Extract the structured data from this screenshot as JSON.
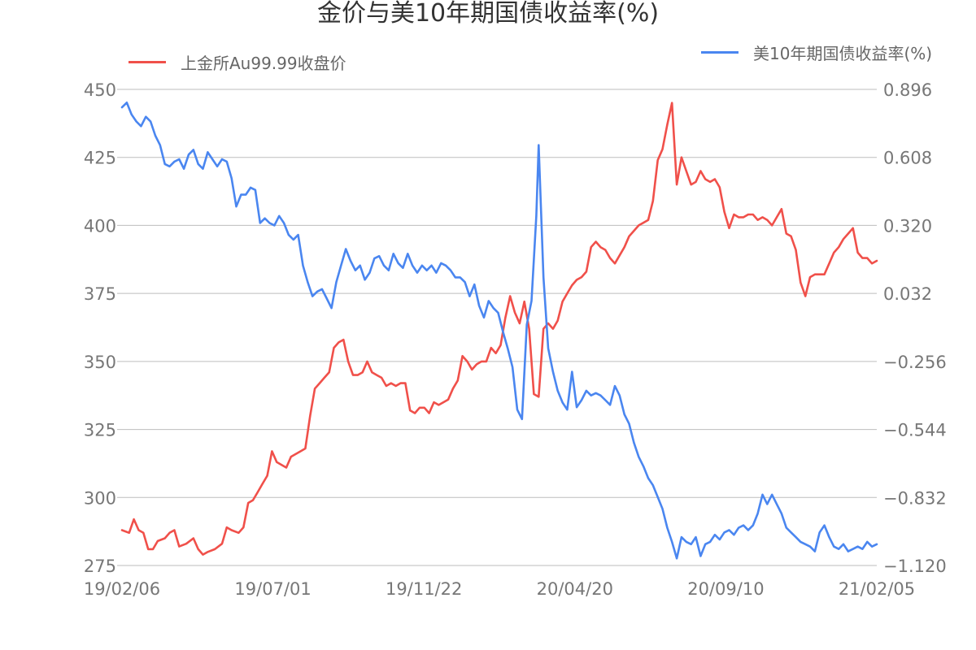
{
  "chart_data": {
    "type": "line",
    "title": "金价与美10年期国债收益率(%)",
    "x_tick_labels": [
      "19/02/06",
      "19/07/01",
      "19/11/22",
      "20/04/20",
      "20/09/10",
      "21/02/05"
    ],
    "left_axis": {
      "ylim": [
        275,
        450
      ],
      "ticks": [
        "450",
        "425",
        "400",
        "375",
        "350",
        "325",
        "300",
        "275"
      ]
    },
    "right_axis": {
      "ylim": [
        -1.12,
        0.896
      ],
      "ticks": [
        "0.896",
        "0.608",
        "0.320",
        "0.032",
        "−0.256",
        "−0.544",
        "−0.832",
        "−1.120"
      ]
    },
    "grid": true,
    "legend_placement": "top",
    "series": [
      {
        "name": "上金所Au99.99收盘价",
        "axis": "left",
        "color": "#f0504a",
        "points": [
          [
            0,
            288
          ],
          [
            3,
            287
          ],
          [
            5,
            292
          ],
          [
            7,
            288
          ],
          [
            9,
            287
          ],
          [
            11,
            281
          ],
          [
            13,
            281
          ],
          [
            15,
            284
          ],
          [
            18,
            285
          ],
          [
            20,
            287
          ],
          [
            22,
            288
          ],
          [
            24,
            282
          ],
          [
            27,
            283
          ],
          [
            30,
            285
          ],
          [
            32,
            281
          ],
          [
            34,
            279
          ],
          [
            36,
            280
          ],
          [
            39,
            281
          ],
          [
            42,
            283
          ],
          [
            44,
            289
          ],
          [
            46,
            288
          ],
          [
            49,
            287
          ],
          [
            51,
            289
          ],
          [
            53,
            298
          ],
          [
            55,
            299
          ],
          [
            57,
            302
          ],
          [
            59,
            305
          ],
          [
            61,
            308
          ],
          [
            63,
            317
          ],
          [
            65,
            313
          ],
          [
            67,
            312
          ],
          [
            69,
            311
          ],
          [
            71,
            315
          ],
          [
            73,
            316
          ],
          [
            75,
            317
          ],
          [
            77,
            318
          ],
          [
            79,
            330
          ],
          [
            81,
            340
          ],
          [
            83,
            342
          ],
          [
            85,
            344
          ],
          [
            87,
            346
          ],
          [
            89,
            355
          ],
          [
            91,
            357
          ],
          [
            93,
            358
          ],
          [
            95,
            350
          ],
          [
            97,
            345
          ],
          [
            99,
            345
          ],
          [
            101,
            346
          ],
          [
            103,
            350
          ],
          [
            105,
            346
          ],
          [
            107,
            345
          ],
          [
            109,
            344
          ],
          [
            111,
            341
          ],
          [
            113,
            342
          ],
          [
            115,
            341
          ],
          [
            117,
            342
          ],
          [
            119,
            342
          ],
          [
            121,
            332
          ],
          [
            123,
            331
          ],
          [
            125,
            333
          ],
          [
            127,
            333
          ],
          [
            129,
            331
          ],
          [
            131,
            335
          ],
          [
            133,
            334
          ],
          [
            135,
            335
          ],
          [
            137,
            336
          ],
          [
            139,
            340
          ],
          [
            141,
            343
          ],
          [
            143,
            352
          ],
          [
            145,
            350
          ],
          [
            147,
            347
          ],
          [
            149,
            349
          ],
          [
            151,
            350
          ],
          [
            153,
            350
          ],
          [
            155,
            355
          ],
          [
            157,
            353
          ],
          [
            159,
            356
          ],
          [
            161,
            366
          ],
          [
            163,
            374
          ],
          [
            165,
            368
          ],
          [
            167,
            364
          ],
          [
            169,
            372
          ],
          [
            171,
            362
          ],
          [
            173,
            338
          ],
          [
            175,
            337
          ],
          [
            177,
            362
          ],
          [
            179,
            364
          ],
          [
            181,
            362
          ],
          [
            183,
            365
          ],
          [
            185,
            372
          ],
          [
            187,
            375
          ],
          [
            189,
            378
          ],
          [
            191,
            380
          ],
          [
            193,
            381
          ],
          [
            195,
            383
          ],
          [
            197,
            392
          ],
          [
            199,
            394
          ],
          [
            201,
            392
          ],
          [
            203,
            391
          ],
          [
            205,
            388
          ],
          [
            207,
            386
          ],
          [
            209,
            389
          ],
          [
            211,
            392
          ],
          [
            213,
            396
          ],
          [
            215,
            398
          ],
          [
            217,
            400
          ],
          [
            219,
            401
          ],
          [
            221,
            402
          ],
          [
            223,
            409
          ],
          [
            225,
            424
          ],
          [
            227,
            428
          ],
          [
            229,
            437
          ],
          [
            231,
            445
          ],
          [
            233,
            415
          ],
          [
            235,
            425
          ],
          [
            237,
            420
          ],
          [
            239,
            415
          ],
          [
            241,
            416
          ],
          [
            243,
            420
          ],
          [
            245,
            417
          ],
          [
            247,
            416
          ],
          [
            249,
            417
          ],
          [
            251,
            414
          ],
          [
            253,
            405
          ],
          [
            255,
            399
          ],
          [
            257,
            404
          ],
          [
            259,
            403
          ],
          [
            261,
            403
          ],
          [
            263,
            404
          ],
          [
            265,
            404
          ],
          [
            267,
            402
          ],
          [
            269,
            403
          ],
          [
            271,
            402
          ],
          [
            273,
            400
          ],
          [
            275,
            403
          ],
          [
            277,
            406
          ],
          [
            279,
            397
          ],
          [
            281,
            396
          ],
          [
            283,
            391
          ],
          [
            285,
            379
          ],
          [
            287,
            374
          ],
          [
            289,
            381
          ],
          [
            291,
            382
          ],
          [
            293,
            382
          ],
          [
            295,
            382
          ],
          [
            297,
            386
          ],
          [
            299,
            390
          ],
          [
            301,
            392
          ],
          [
            303,
            395
          ],
          [
            305,
            397
          ],
          [
            307,
            399
          ],
          [
            309,
            390
          ],
          [
            311,
            388
          ],
          [
            313,
            388
          ],
          [
            315,
            386
          ],
          [
            317,
            387
          ]
        ]
      },
      {
        "name": "美10年期国债收益率(%)",
        "axis": "right",
        "color": "#4a86f0",
        "points": [
          [
            0,
            0.82
          ],
          [
            2,
            0.84
          ],
          [
            4,
            0.79
          ],
          [
            6,
            0.76
          ],
          [
            8,
            0.74
          ],
          [
            10,
            0.78
          ],
          [
            12,
            0.76
          ],
          [
            14,
            0.7
          ],
          [
            16,
            0.66
          ],
          [
            18,
            0.58
          ],
          [
            20,
            0.57
          ],
          [
            22,
            0.59
          ],
          [
            24,
            0.6
          ],
          [
            26,
            0.56
          ],
          [
            28,
            0.62
          ],
          [
            30,
            0.64
          ],
          [
            32,
            0.58
          ],
          [
            34,
            0.56
          ],
          [
            36,
            0.63
          ],
          [
            38,
            0.6
          ],
          [
            40,
            0.57
          ],
          [
            42,
            0.6
          ],
          [
            44,
            0.59
          ],
          [
            46,
            0.52
          ],
          [
            48,
            0.4
          ],
          [
            50,
            0.45
          ],
          [
            52,
            0.45
          ],
          [
            54,
            0.48
          ],
          [
            56,
            0.47
          ],
          [
            58,
            0.33
          ],
          [
            60,
            0.35
          ],
          [
            62,
            0.33
          ],
          [
            64,
            0.32
          ],
          [
            66,
            0.36
          ],
          [
            68,
            0.33
          ],
          [
            70,
            0.28
          ],
          [
            72,
            0.26
          ],
          [
            74,
            0.28
          ],
          [
            76,
            0.15
          ],
          [
            78,
            0.08
          ],
          [
            80,
            0.02
          ],
          [
            82,
            0.04
          ],
          [
            84,
            0.05
          ],
          [
            86,
            0.01
          ],
          [
            88,
            -0.03
          ],
          [
            90,
            0.08
          ],
          [
            92,
            0.15
          ],
          [
            94,
            0.22
          ],
          [
            96,
            0.17
          ],
          [
            98,
            0.13
          ],
          [
            100,
            0.15
          ],
          [
            102,
            0.09
          ],
          [
            104,
            0.12
          ],
          [
            106,
            0.18
          ],
          [
            108,
            0.19
          ],
          [
            110,
            0.15
          ],
          [
            112,
            0.13
          ],
          [
            114,
            0.2
          ],
          [
            116,
            0.16
          ],
          [
            118,
            0.14
          ],
          [
            120,
            0.2
          ],
          [
            122,
            0.15
          ],
          [
            124,
            0.12
          ],
          [
            126,
            0.15
          ],
          [
            128,
            0.13
          ],
          [
            130,
            0.15
          ],
          [
            132,
            0.12
          ],
          [
            134,
            0.16
          ],
          [
            136,
            0.15
          ],
          [
            138,
            0.13
          ],
          [
            140,
            0.1
          ],
          [
            142,
            0.1
          ],
          [
            144,
            0.08
          ],
          [
            146,
            0.02
          ],
          [
            148,
            0.07
          ],
          [
            150,
            -0.02
          ],
          [
            152,
            -0.07
          ],
          [
            154,
            0.0
          ],
          [
            156,
            -0.03
          ],
          [
            158,
            -0.05
          ],
          [
            160,
            -0.13
          ],
          [
            162,
            -0.2
          ],
          [
            164,
            -0.28
          ],
          [
            166,
            -0.46
          ],
          [
            168,
            -0.5
          ],
          [
            170,
            -0.1
          ],
          [
            172,
            0.0
          ],
          [
            174,
            0.36
          ],
          [
            175,
            0.66
          ],
          [
            177,
            0.1
          ],
          [
            179,
            -0.2
          ],
          [
            181,
            -0.3
          ],
          [
            183,
            -0.38
          ],
          [
            185,
            -0.43
          ],
          [
            187,
            -0.46
          ],
          [
            189,
            -0.3
          ],
          [
            191,
            -0.45
          ],
          [
            193,
            -0.42
          ],
          [
            195,
            -0.38
          ],
          [
            197,
            -0.4
          ],
          [
            199,
            -0.39
          ],
          [
            201,
            -0.4
          ],
          [
            203,
            -0.42
          ],
          [
            205,
            -0.44
          ],
          [
            207,
            -0.36
          ],
          [
            209,
            -0.4
          ],
          [
            211,
            -0.48
          ],
          [
            213,
            -0.52
          ],
          [
            215,
            -0.6
          ],
          [
            217,
            -0.66
          ],
          [
            219,
            -0.7
          ],
          [
            221,
            -0.75
          ],
          [
            223,
            -0.78
          ],
          [
            225,
            -0.83
          ],
          [
            227,
            -0.88
          ],
          [
            229,
            -0.96
          ],
          [
            231,
            -1.02
          ],
          [
            233,
            -1.09
          ],
          [
            235,
            -1.0
          ],
          [
            237,
            -1.02
          ],
          [
            239,
            -1.03
          ],
          [
            241,
            -1.0
          ],
          [
            243,
            -1.08
          ],
          [
            245,
            -1.03
          ],
          [
            247,
            -1.02
          ],
          [
            249,
            -0.99
          ],
          [
            251,
            -1.01
          ],
          [
            253,
            -0.98
          ],
          [
            255,
            -0.97
          ],
          [
            257,
            -0.99
          ],
          [
            259,
            -0.96
          ],
          [
            261,
            -0.95
          ],
          [
            263,
            -0.97
          ],
          [
            265,
            -0.95
          ],
          [
            267,
            -0.9
          ],
          [
            269,
            -0.82
          ],
          [
            271,
            -0.86
          ],
          [
            273,
            -0.82
          ],
          [
            275,
            -0.86
          ],
          [
            277,
            -0.9
          ],
          [
            279,
            -0.96
          ],
          [
            281,
            -0.98
          ],
          [
            283,
            -1.0
          ],
          [
            285,
            -1.02
          ],
          [
            287,
            -1.03
          ],
          [
            289,
            -1.04
          ],
          [
            291,
            -1.06
          ],
          [
            293,
            -0.98
          ],
          [
            295,
            -0.95
          ],
          [
            297,
            -1.0
          ],
          [
            299,
            -1.04
          ],
          [
            301,
            -1.05
          ],
          [
            303,
            -1.03
          ],
          [
            305,
            -1.06
          ],
          [
            307,
            -1.05
          ],
          [
            309,
            -1.04
          ],
          [
            311,
            -1.05
          ],
          [
            313,
            -1.02
          ],
          [
            315,
            -1.04
          ],
          [
            317,
            -1.03
          ]
        ]
      }
    ]
  }
}
